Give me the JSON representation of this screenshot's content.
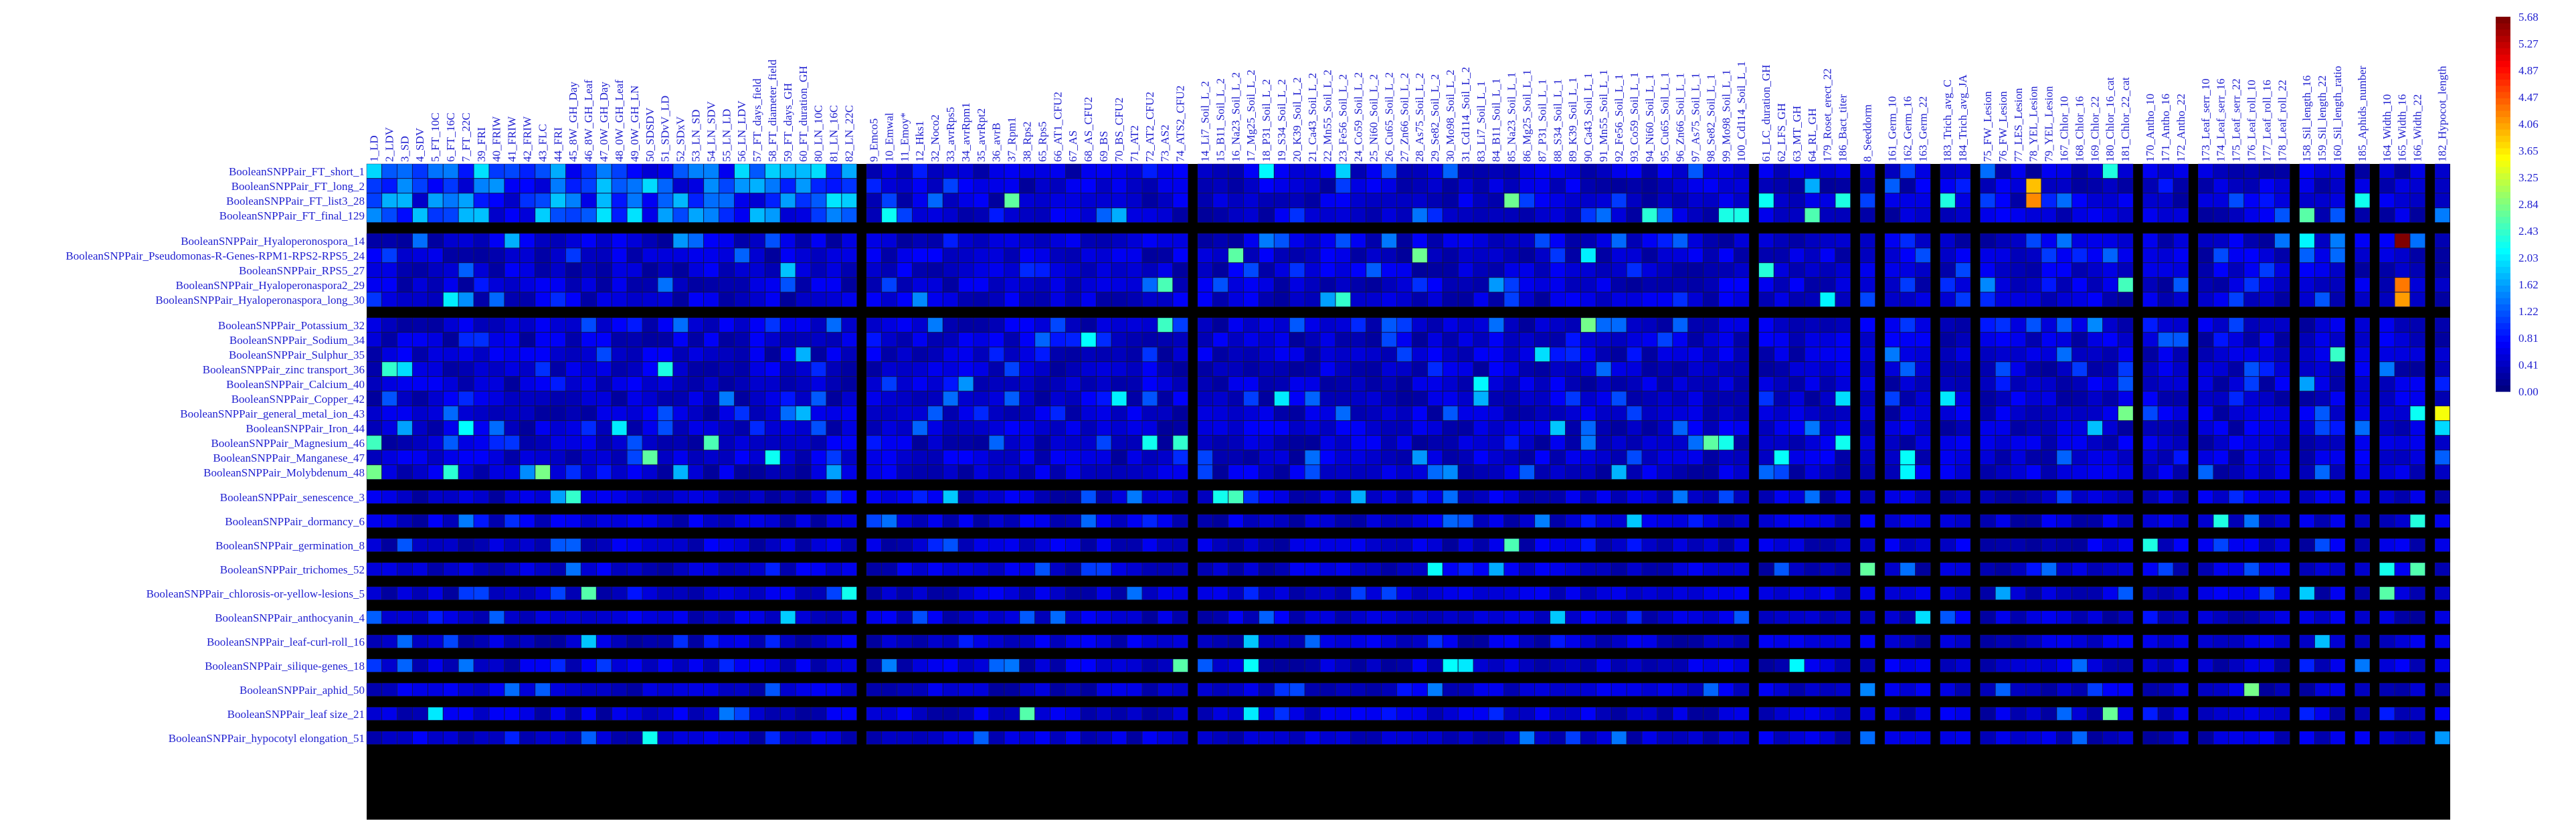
{
  "chart_data": {
    "type": "heatmap",
    "title": "",
    "xlabel": "",
    "ylabel": "",
    "colorbar": {
      "ticks": [
        "0.00",
        "0.41",
        "0.81",
        "1.22",
        "1.62",
        "2.03",
        "2.43",
        "2.84",
        "3.25",
        "3.65",
        "4.06",
        "4.47",
        "4.87",
        "5.27",
        "5.68"
      ],
      "range": [
        0.0,
        5.68
      ],
      "colormap": "jet"
    },
    "row_groups": [
      [
        "BooleanSNPPair_FT_short_1",
        "BooleanSNPPair_FT_long_2",
        "BooleanSNPPair_FT_list3_28",
        "BooleanSNPPair_FT_final_129"
      ],
      [
        "BooleanSNPPair_Hyaloperonospora_14",
        "BooleanSNPPair_Pseudomonas-R-Genes-RPM1-RPS2-RPS5_24",
        "BooleanSNPPair_RPS5_27",
        "BooleanSNPPair_Hyaloperonaspora2_29",
        "BooleanSNPPair_Hyaloperonaspora_long_30"
      ],
      [
        "BooleanSNPPair_Potassium_32",
        "BooleanSNPPair_Sodium_34",
        "BooleanSNPPair_Sulphur_35",
        "BooleanSNPPair_zinc transport_36",
        "BooleanSNPPair_Calcium_40",
        "BooleanSNPPair_Copper_42",
        "BooleanSNPPair_general_metal_ion_43",
        "BooleanSNPPair_Iron_44",
        "BooleanSNPPair_Magnesium_46",
        "BooleanSNPPair_Manganese_47",
        "BooleanSNPPair_Molybdenum_48"
      ],
      [
        "BooleanSNPPair_senescence_3"
      ],
      [
        "BooleanSNPPair_dormancy_6"
      ],
      [
        "BooleanSNPPair_germination_8"
      ],
      [
        "BooleanSNPPair_trichomes_52"
      ],
      [
        "BooleanSNPPair_chlorosis-or-yellow-lesions_5"
      ],
      [
        "BooleanSNPPair_anthocyanin_4"
      ],
      [
        "BooleanSNPPair_leaf-curl-roll_16"
      ],
      [
        "BooleanSNPPair_silique-genes_18"
      ],
      [
        "BooleanSNPPair_aphid_50"
      ],
      [
        "BooleanSNPPair_leaf size_21"
      ],
      [
        "BooleanSNPPair_hypocotyl elongation_51"
      ]
    ],
    "column_groups": [
      [
        "1_LD",
        "2_LDV",
        "3_SD",
        "4_SDV",
        "5_FT_10C",
        "6_FT_16C",
        "7_FT_22C",
        "39_FRI",
        "40_FRIW",
        "41_FRIW",
        "42_FRIW",
        "43_FLC",
        "44_FRI",
        "45_8W_GH_Day",
        "46_8W_GH_Leaf",
        "47_0W_GH_Day",
        "48_0W_GH_Leaf",
        "49_0W_GH_LN",
        "50_SDSDV",
        "51_SDvV_LD",
        "52_SDxV",
        "53_LN_SD",
        "54_LN_SDV",
        "55_LN_LD",
        "56_LN_LDV",
        "57_FT_days_field",
        "58_FT_diameter_field",
        "59_FT_days_GH",
        "60_FT_duration_GH",
        "80_LN_10C",
        "81_LN_16C",
        "82_LN_22C"
      ],
      [
        "9_Emco5",
        "10_Emwal",
        "11_Emoy*",
        "12_Hks1",
        "32_Noco2",
        "33_avrRps5",
        "34_avrRpm1",
        "35_avrRpt2",
        "36_avrB",
        "37_Rpm1",
        "38_Rps2",
        "65_Rps5",
        "66_AT1_CFU2",
        "67_AS",
        "68_AS_CFU2",
        "69_BS",
        "70_BS_CFU2",
        "71_AT2",
        "72_AT2_CFU2",
        "73_AS2",
        "74_ATS2_CFU2"
      ],
      [
        "14_Li7_Soil_L_2",
        "15_B11_Soil_L_2",
        "16_Na23_Soil_L_2",
        "17_Mg25_Soil_L_2",
        "18_P31_Soil_L_2",
        "19_S34_Soil_L_2",
        "20_K39_Soil_L_2",
        "21_Ca43_Soil_L_2",
        "22_Mn55_Soil_L_2",
        "23_Fe56_Soil_L_2",
        "24_Co59_Soil_L_2",
        "25_Ni60_Soil_L_2",
        "26_Cu65_Soil_L_2",
        "27_Zn66_Soil_L_2",
        "28_As75_Soil_L_2",
        "29_Se82_Soil_L_2",
        "30_Mo98_Soil_L_2",
        "31_Cd114_Soil_L_2",
        "83_Li7_Soil_L_1",
        "84_B11_Soil_L_1",
        "85_Na23_Soil_L_1",
        "86_Mg25_Soil_L_1",
        "87_P31_Soil_L_1",
        "88_S34_Soil_L_1",
        "89_K39_Soil_L_1",
        "90_Ca43_Soil_L_1",
        "91_Mn55_Soil_L_1",
        "92_Fe56_Soil_L_1",
        "93_Co59_Soil_L_1",
        "94_Ni60_Soil_L_1",
        "95_Cu65_Soil_L_1",
        "96_Zn66_Soil_L_1",
        "97_As75_Soil_L_1",
        "98_Se82_Soil_L_1",
        "99_Mo98_Soil_L_1",
        "100_Cd114_Soil_L_1"
      ],
      [
        "61_LC_duration_GH",
        "62_LFS_GH",
        "63_MT_GH",
        "64_RL_GH",
        "179_Roset_erect_22",
        "186_Bact_titer"
      ],
      [
        "8_Seeddorm"
      ],
      [
        "161_Germ_10",
        "162_Germ_16",
        "163_Germ_22"
      ],
      [
        "183_Trich_avg_C",
        "184_Trich_avg_JA"
      ],
      [
        "75_FW_Lesion",
        "76_FW_Lesion",
        "77_LES_Lesion",
        "78_YEL_Lesion",
        "79_YEL_Lesion",
        "167_Chlor_10",
        "168_Chlor_16",
        "169_Chlor_22",
        "180_Chlor_16_cat",
        "181_Chlor_22_cat"
      ],
      [
        "170_Antho_10",
        "171_Antho_16",
        "172_Antho_22"
      ],
      [
        "173_Leaf_serr_10",
        "174_Leaf_serr_16",
        "175_Leaf_serr_22",
        "176_Leaf_roll_10",
        "177_Leaf_roll_16",
        "178_Leaf_roll_22"
      ],
      [
        "158_Sil_length_16",
        "159_Sil_length_22",
        "160_Sil_length_ratio"
      ],
      [
        "185_Aphids_number"
      ],
      [
        "164_Width_10",
        "165_Width_16",
        "166_Width_22"
      ],
      [
        "182_Hypocot_length"
      ]
    ],
    "colors": {
      "gap": "#000000",
      "low": "#0000ff",
      "high": "#ff0000"
    },
    "notable_cells": [
      {
        "row": "BooleanSNPPair_Hyaloperonospora_14",
        "col": "165_Width_16",
        "value": 5.68
      },
      {
        "row": "BooleanSNPPair_Hyaloperonaspora2_29",
        "col": "165_Width_16",
        "value": 4.3
      },
      {
        "row": "BooleanSNPPair_Hyaloperonaspora_long_30",
        "col": "165_Width_16",
        "value": 4.1
      },
      {
        "row": "BooleanSNPPair_FT_long_2",
        "col": "78_YEL_Lesion",
        "value": 3.9
      },
      {
        "row": "BooleanSNPPair_FT_list3_28",
        "col": "78_YEL_Lesion",
        "value": 4.2
      },
      {
        "row": "BooleanSNPPair_general_metal_ion_43",
        "col": "182_Hypocot_length",
        "value": 3.5
      }
    ]
  }
}
